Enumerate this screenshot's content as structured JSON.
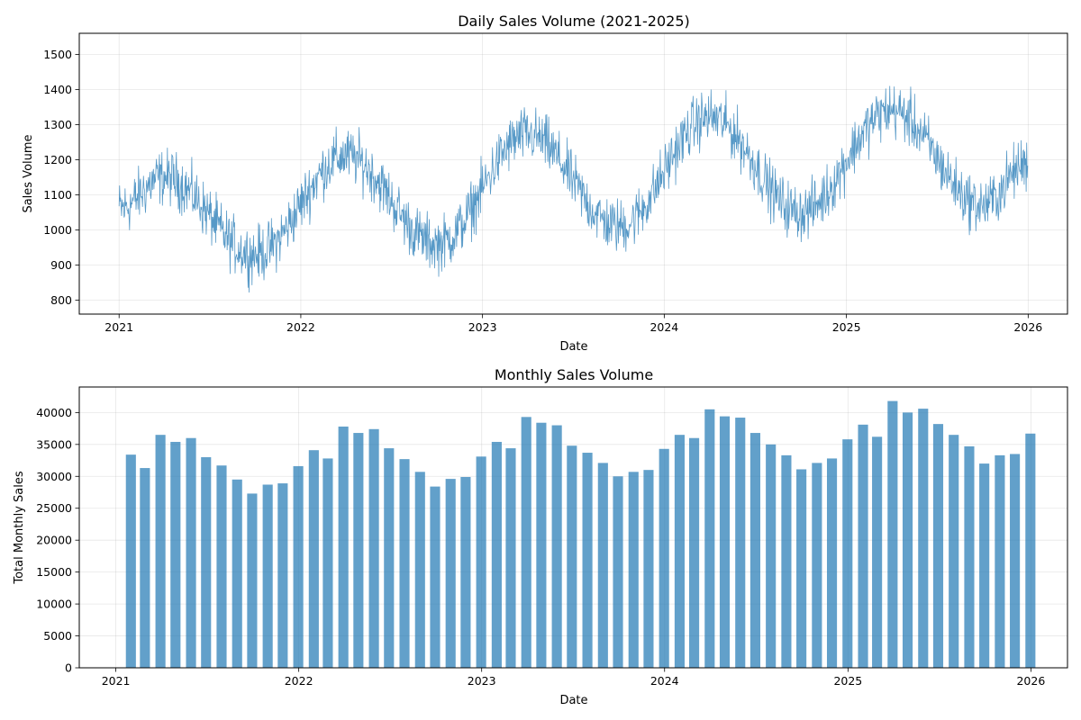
{
  "chart_data": [
    {
      "type": "line",
      "title": "Daily Sales Volume (2021-2025)",
      "xlabel": "Date",
      "ylabel": "Sales Volume",
      "x_range": [
        "2020-10-13",
        "2026-03-21"
      ],
      "ylim": [
        760,
        1560
      ],
      "x_ticks": [
        "2021-01-01",
        "2022-01-01",
        "2023-01-01",
        "2024-01-01",
        "2025-01-01",
        "2026-01-01"
      ],
      "x_tick_labels": [
        "2021",
        "2022",
        "2023",
        "2024",
        "2025",
        "2026"
      ],
      "y_ticks": [
        800,
        900,
        1000,
        1100,
        1200,
        1300,
        1400,
        1500
      ],
      "y_tick_labels": [
        "800",
        "900",
        "1000",
        "1100",
        "1200",
        "1300",
        "1400",
        "1500"
      ],
      "grid": true,
      "color": "#1f77b4",
      "series": [
        {
          "x_start": "2021-01-01",
          "x_end": "2025-12-31",
          "frequency": "daily",
          "approximate_trend": {
            "x": [
              "2021-01-01",
              "2021-04-01",
              "2021-10-01",
              "2022-04-01",
              "2022-10-01",
              "2023-04-01",
              "2023-10-01",
              "2024-04-01",
              "2024-10-01",
              "2025-04-01",
              "2025-10-01",
              "2025-12-31"
            ],
            "y": [
              1060,
              1150,
              930,
              1210,
              960,
              1270,
              1010,
              1320,
              1050,
              1340,
              1070,
              1190
            ]
          },
          "noise_amplitude": 60
        }
      ]
    },
    {
      "type": "bar",
      "title": "Monthly Sales Volume",
      "xlabel": "Date",
      "ylabel": "Total Monthly Sales",
      "x_range": [
        "2020-10-20",
        "2026-03-15"
      ],
      "ylim": [
        0,
        44000
      ],
      "x_ticks": [
        "2021-01-01",
        "2022-01-01",
        "2023-01-01",
        "2024-01-01",
        "2025-01-01",
        "2026-01-01"
      ],
      "x_tick_labels": [
        "2021",
        "2022",
        "2023",
        "2024",
        "2025",
        "2026"
      ],
      "y_ticks": [
        0,
        5000,
        10000,
        15000,
        20000,
        25000,
        30000,
        35000,
        40000
      ],
      "y_tick_labels": [
        "0",
        "5000",
        "10000",
        "15000",
        "20000",
        "25000",
        "30000",
        "35000",
        "40000"
      ],
      "grid": true,
      "color": "#1f77b4",
      "categories": [
        "2021-01-31",
        "2021-02-28",
        "2021-03-31",
        "2021-04-30",
        "2021-05-31",
        "2021-06-30",
        "2021-07-31",
        "2021-08-31",
        "2021-09-30",
        "2021-10-31",
        "2021-11-30",
        "2021-12-31",
        "2022-01-31",
        "2022-02-28",
        "2022-03-31",
        "2022-04-30",
        "2022-05-31",
        "2022-06-30",
        "2022-07-31",
        "2022-08-31",
        "2022-09-30",
        "2022-10-31",
        "2022-11-30",
        "2022-12-31",
        "2023-01-31",
        "2023-02-28",
        "2023-03-31",
        "2023-04-30",
        "2023-05-31",
        "2023-06-30",
        "2023-07-31",
        "2023-08-31",
        "2023-09-30",
        "2023-10-31",
        "2023-11-30",
        "2023-12-31",
        "2024-01-31",
        "2024-02-29",
        "2024-03-31",
        "2024-04-30",
        "2024-05-31",
        "2024-06-30",
        "2024-07-31",
        "2024-08-31",
        "2024-09-30",
        "2024-10-31",
        "2024-11-30",
        "2024-12-31",
        "2025-01-31",
        "2025-02-28",
        "2025-03-31",
        "2025-04-30",
        "2025-05-31",
        "2025-06-30",
        "2025-07-31",
        "2025-08-31",
        "2025-09-30",
        "2025-10-31",
        "2025-11-30",
        "2025-12-31"
      ],
      "values": [
        33400,
        31300,
        36500,
        35400,
        36000,
        33000,
        31700,
        29500,
        27300,
        28700,
        28900,
        31600,
        34100,
        32800,
        37800,
        36800,
        37400,
        34400,
        32700,
        30700,
        28400,
        29600,
        29900,
        33100,
        35400,
        34400,
        39300,
        38400,
        38000,
        34800,
        33700,
        32100,
        30000,
        30700,
        31000,
        34300,
        36500,
        36000,
        40500,
        39400,
        39200,
        36800,
        35000,
        33300,
        31100,
        32100,
        32800,
        35800,
        38100,
        36200,
        41800,
        40000,
        40600,
        38200,
        36500,
        34700,
        32000,
        33300,
        33500,
        36700
      ],
      "bar_width_days": 20
    }
  ]
}
